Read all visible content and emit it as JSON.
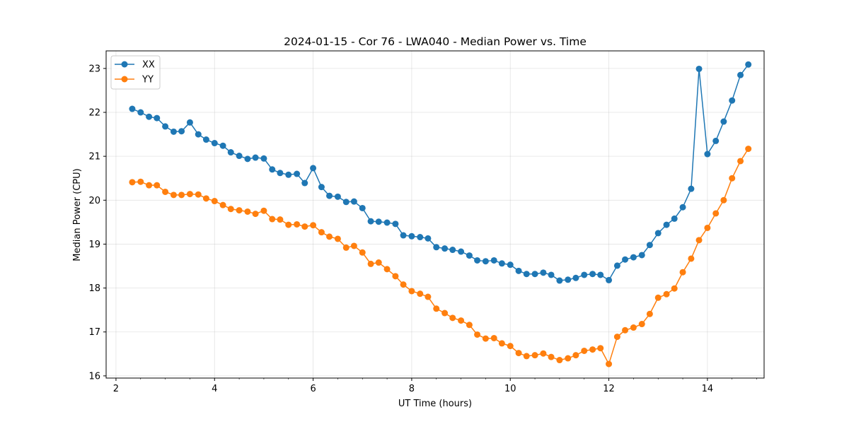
{
  "chart_data": {
    "type": "line",
    "title": "2024-01-15 - Cor 76 - LWA040 - Median Power vs. Time",
    "xlabel": "UT Time (hours)",
    "ylabel": "Median Power (CPU)",
    "xlim": [
      1.8,
      15.15
    ],
    "ylim": [
      15.95,
      23.4
    ],
    "xticks": [
      2,
      4,
      6,
      8,
      10,
      12,
      14
    ],
    "xtick_labels": [
      "2",
      "4",
      "6",
      "8",
      "10",
      "12",
      "14"
    ],
    "yticks": [
      16,
      17,
      18,
      19,
      20,
      21,
      22,
      23
    ],
    "ytick_labels": [
      "16",
      "17",
      "18",
      "19",
      "20",
      "21",
      "22",
      "23"
    ],
    "grid": true,
    "legend_position": "top-left",
    "x": [
      2.33,
      2.5,
      2.67,
      2.83,
      3.0,
      3.17,
      3.33,
      3.5,
      3.67,
      3.83,
      4.0,
      4.17,
      4.33,
      4.5,
      4.67,
      4.83,
      5.0,
      5.17,
      5.33,
      5.5,
      5.67,
      5.83,
      6.0,
      6.17,
      6.33,
      6.5,
      6.67,
      6.83,
      7.0,
      7.17,
      7.33,
      7.5,
      7.67,
      7.83,
      8.0,
      8.17,
      8.33,
      8.5,
      8.67,
      8.83,
      9.0,
      9.17,
      9.33,
      9.5,
      9.67,
      9.83,
      10.0,
      10.17,
      10.33,
      10.5,
      10.67,
      10.83,
      11.0,
      11.17,
      11.33,
      11.5,
      11.67,
      11.83,
      12.0,
      12.17,
      12.33,
      12.5,
      12.67,
      12.83,
      13.0,
      13.17,
      13.33,
      13.5,
      13.67,
      13.83,
      14.0,
      14.17,
      14.33,
      14.5,
      14.67,
      14.83
    ],
    "series": [
      {
        "name": "XX",
        "color": "#1f77b4",
        "values": [
          22.08,
          22.0,
          21.9,
          21.87,
          21.68,
          21.56,
          21.57,
          21.77,
          21.5,
          21.38,
          21.3,
          21.24,
          21.09,
          21.01,
          20.94,
          20.97,
          20.95,
          20.7,
          20.62,
          20.58,
          20.6,
          20.39,
          20.73,
          20.3,
          20.1,
          20.08,
          19.96,
          19.97,
          19.82,
          19.52,
          19.51,
          19.49,
          19.46,
          19.2,
          19.18,
          19.16,
          19.13,
          18.93,
          18.9,
          18.87,
          18.83,
          18.74,
          18.63,
          18.61,
          18.63,
          18.56,
          18.53,
          18.39,
          18.32,
          18.32,
          18.35,
          18.3,
          18.17,
          18.19,
          18.23,
          18.3,
          18.32,
          18.3,
          18.18,
          18.51,
          18.65,
          18.7,
          18.75,
          18.98,
          19.25,
          19.44,
          19.58,
          19.84,
          20.26,
          22.99,
          21.05,
          21.35,
          21.79,
          22.27,
          22.85,
          23.09
        ]
      },
      {
        "name": "YY",
        "color": "#ff7f0e",
        "values": [
          20.41,
          20.42,
          20.34,
          20.34,
          20.19,
          20.12,
          20.12,
          20.14,
          20.13,
          20.04,
          19.98,
          19.89,
          19.8,
          19.77,
          19.74,
          19.69,
          19.76,
          19.57,
          19.56,
          19.44,
          19.45,
          19.4,
          19.43,
          19.27,
          19.17,
          19.12,
          18.92,
          18.96,
          18.81,
          18.55,
          18.58,
          18.43,
          18.27,
          18.08,
          17.93,
          17.87,
          17.8,
          17.53,
          17.43,
          17.32,
          17.26,
          17.16,
          16.94,
          16.85,
          16.86,
          16.74,
          16.68,
          16.52,
          16.45,
          16.47,
          16.51,
          16.43,
          16.36,
          16.4,
          16.47,
          16.57,
          16.6,
          16.63,
          16.27,
          16.89,
          17.04,
          17.1,
          17.18,
          17.41,
          17.78,
          17.86,
          17.99,
          18.36,
          18.67,
          19.09,
          19.37,
          19.7,
          20.0,
          20.5,
          20.89,
          21.17
        ]
      }
    ]
  }
}
